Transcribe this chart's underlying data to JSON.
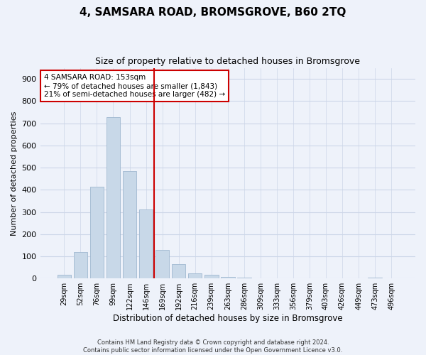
{
  "title": "4, SAMSARA ROAD, BROMSGROVE, B60 2TQ",
  "subtitle": "Size of property relative to detached houses in Bromsgrove",
  "xlabel": "Distribution of detached houses by size in Bromsgrove",
  "ylabel": "Number of detached properties",
  "categories": [
    "29sqm",
    "52sqm",
    "76sqm",
    "99sqm",
    "122sqm",
    "146sqm",
    "169sqm",
    "192sqm",
    "216sqm",
    "239sqm",
    "263sqm",
    "286sqm",
    "309sqm",
    "333sqm",
    "356sqm",
    "379sqm",
    "403sqm",
    "426sqm",
    "449sqm",
    "473sqm",
    "496sqm"
  ],
  "values": [
    18,
    120,
    415,
    728,
    483,
    312,
    130,
    65,
    22,
    18,
    8,
    5,
    2,
    1,
    1,
    0,
    0,
    0,
    0,
    5,
    0
  ],
  "bar_color": "#c8d8e8",
  "bar_edge_color": "#a0b8d0",
  "vline_color": "#cc0000",
  "annotation_text": "4 SAMSARA ROAD: 153sqm\n← 79% of detached houses are smaller (1,843)\n21% of semi-detached houses are larger (482) →",
  "annotation_box_color": "#ffffff",
  "annotation_box_edge_color": "#cc0000",
  "ylim": [
    0,
    950
  ],
  "yticks": [
    0,
    100,
    200,
    300,
    400,
    500,
    600,
    700,
    800,
    900
  ],
  "grid_color": "#ccd6e8",
  "background_color": "#eef2fa",
  "footer": "Contains HM Land Registry data © Crown copyright and database right 2024.\nContains public sector information licensed under the Open Government Licence v3.0."
}
